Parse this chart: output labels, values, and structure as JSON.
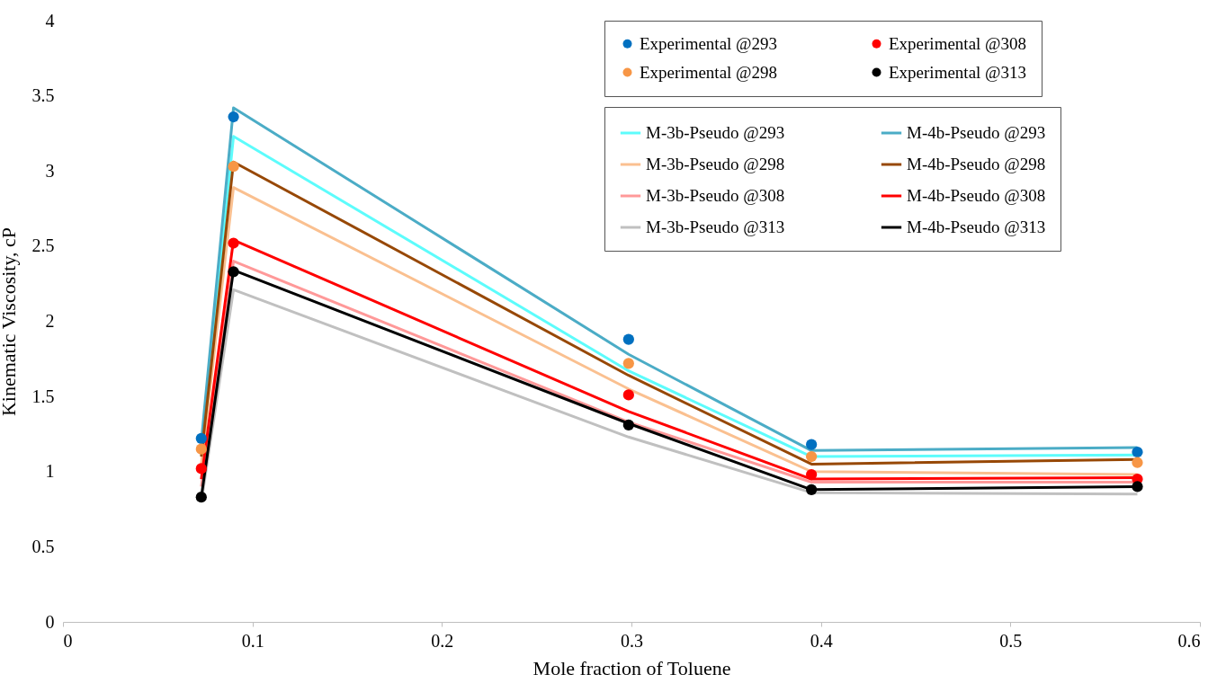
{
  "chart_data": {
    "type": "line",
    "xlabel": "Mole fraction of Toluene",
    "ylabel": "Kinematic Viscosity, cP",
    "x": [
      0.073,
      0.09,
      0.2985,
      0.395,
      0.567
    ],
    "xlim": [
      0,
      0.6
    ],
    "xticks": [
      0,
      0.1,
      0.2,
      0.3,
      0.4,
      0.5,
      0.6
    ],
    "ylim": [
      0,
      4
    ],
    "yticks": [
      0,
      0.5,
      1,
      1.5,
      2,
      2.5,
      3,
      3.5,
      4
    ],
    "grid": false,
    "legend": "top right",
    "series": [
      {
        "name": "Experimental @293",
        "type": "scatter",
        "marker": "circle",
        "color": "#0070c0",
        "values": [
          1.22,
          3.36,
          1.88,
          1.18,
          1.13
        ]
      },
      {
        "name": "Experimental @298",
        "type": "scatter",
        "marker": "circle",
        "color": "#f79646",
        "values": [
          1.15,
          3.03,
          1.72,
          1.1,
          1.06
        ]
      },
      {
        "name": "Experimental @308",
        "type": "scatter",
        "marker": "circle",
        "color": "#ff0000",
        "values": [
          1.02,
          2.52,
          1.51,
          0.98,
          0.95
        ]
      },
      {
        "name": "Experimental @313",
        "type": "scatter",
        "marker": "circle",
        "color": "#000000",
        "values": [
          0.83,
          2.33,
          1.31,
          0.88,
          0.9
        ]
      },
      {
        "name": "M-3b-Pseudo @293",
        "color": "#5dfcfc",
        "values": [
          1.15,
          3.23,
          1.67,
          1.1,
          1.11
        ]
      },
      {
        "name": "M-3b-Pseudo @298",
        "color": "#fac090",
        "values": [
          1.05,
          2.89,
          1.55,
          1.0,
          0.98
        ]
      },
      {
        "name": "M-3b-Pseudo @308",
        "color": "#ff9999",
        "values": [
          0.9,
          2.4,
          1.33,
          0.93,
          0.93
        ]
      },
      {
        "name": "M-3b-Pseudo @313",
        "color": "#c0c0c0",
        "values": [
          0.8,
          2.21,
          1.23,
          0.86,
          0.85
        ]
      },
      {
        "name": "M-4b-Pseudo @293",
        "color": "#4bacc6",
        "values": [
          1.2,
          3.42,
          1.78,
          1.14,
          1.16
        ]
      },
      {
        "name": "M-4b-Pseudo @298",
        "color": "#974806",
        "values": [
          1.1,
          3.06,
          1.64,
          1.05,
          1.08
        ]
      },
      {
        "name": "M-4b-Pseudo @308",
        "color": "#ff0000",
        "values": [
          0.95,
          2.54,
          1.4,
          0.95,
          0.96
        ]
      },
      {
        "name": "M-4b-Pseudo @313",
        "color": "#000000",
        "values": [
          0.83,
          2.34,
          1.32,
          0.88,
          0.9
        ]
      }
    ]
  }
}
